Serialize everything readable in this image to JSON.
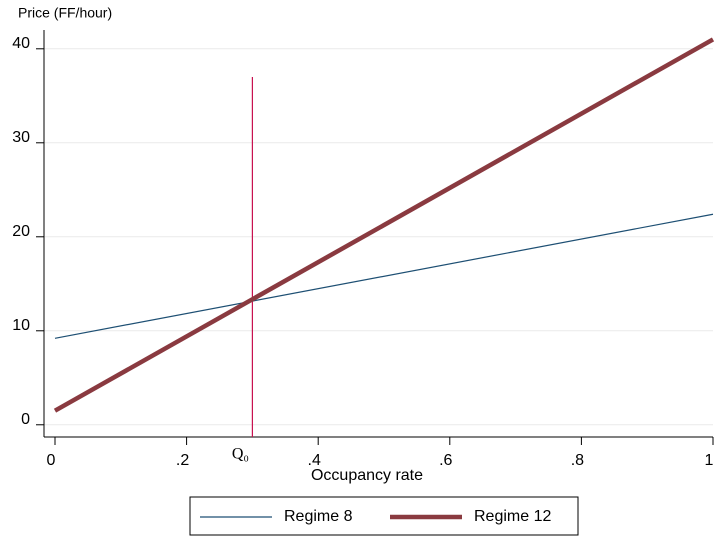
{
  "chart_data": {
    "type": "line",
    "y_label": "Price (FF/hour)",
    "x_label": "Occupancy rate",
    "x": [
      0,
      1
    ],
    "series": [
      {
        "name": "Regime 8",
        "color": "#1d4f73",
        "width": 1.2,
        "values": [
          9.2,
          22.4
        ]
      },
      {
        "name": "Regime 12",
        "color": "#8a3a40",
        "width": 4.5,
        "values": [
          1.5,
          41
        ]
      }
    ],
    "xlim": [
      -0.0167,
      1
    ],
    "ylim": [
      -1.3,
      42
    ],
    "xticks": [
      0,
      {
        "value": 0.2,
        "label": ".2"
      },
      {
        "value": 0.4,
        "label": ".4"
      },
      {
        "value": 0.6,
        "label": ".6"
      },
      {
        "value": 0.8,
        "label": ".8"
      },
      1
    ],
    "yticks": [
      0,
      10,
      20,
      30,
      40
    ],
    "grid": true,
    "vline": {
      "x": 0.3,
      "top": 37,
      "color": "#c8104e",
      "label": "Q₀"
    },
    "legend": "bottom"
  }
}
